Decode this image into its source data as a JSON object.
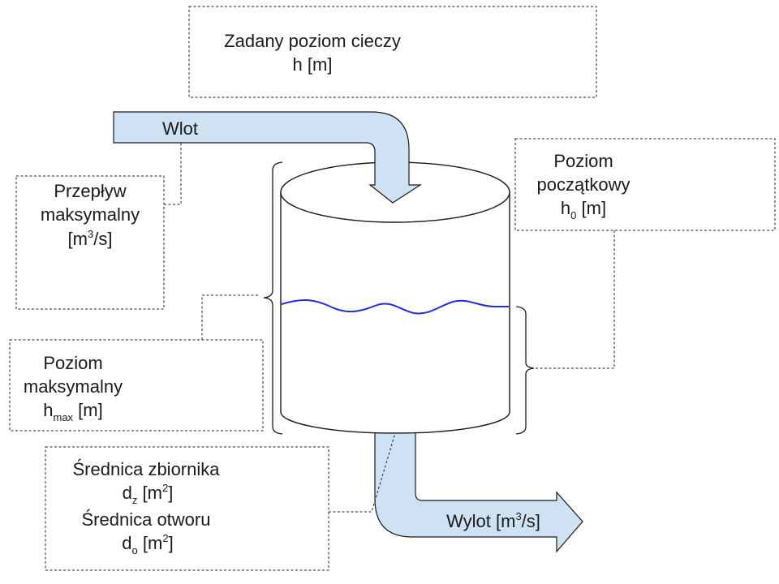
{
  "labels": {
    "setpoint_line1": "Zadany poziom cieczy",
    "setpoint_line2": "h [m]",
    "inlet": "Wlot",
    "max_flow_line1": "Przepływ",
    "max_flow_line2": "maksymalny",
    "max_flow_unit_open": "[m",
    "max_flow_unit_sup": "3",
    "max_flow_unit_close": "/s]",
    "initial_level_line1": "Poziom",
    "initial_level_line2": "początkowy",
    "initial_level_sym": "h",
    "initial_level_sub": "0",
    "initial_level_unit": " [m]",
    "max_level_line1": "Poziom",
    "max_level_line2": "maksymalny",
    "max_level_sym": "h",
    "max_level_sub": "max",
    "max_level_unit": " [m]",
    "tank_diameter_line1": "Średnica zbiornika",
    "tank_diameter_sym": "d",
    "tank_diameter_sub": "z",
    "tank_diameter_unit_open": " [m",
    "tank_diameter_unit_sup": "2",
    "tank_diameter_unit_close": "]",
    "orifice_diameter_line1": "Średnica otworu",
    "orifice_diameter_sym": "d",
    "orifice_diameter_sub": "o",
    "orifice_diameter_unit_open": " [m",
    "orifice_diameter_unit_sup": "2",
    "orifice_diameter_unit_close": "]",
    "outlet_open": "Wylot [m",
    "outlet_sup": "3",
    "outlet_close": "/s]"
  },
  "colors": {
    "pipe_fill": "#cfe2f3",
    "water_line": "#1f2fd6",
    "outline": "#1a1a1a"
  }
}
